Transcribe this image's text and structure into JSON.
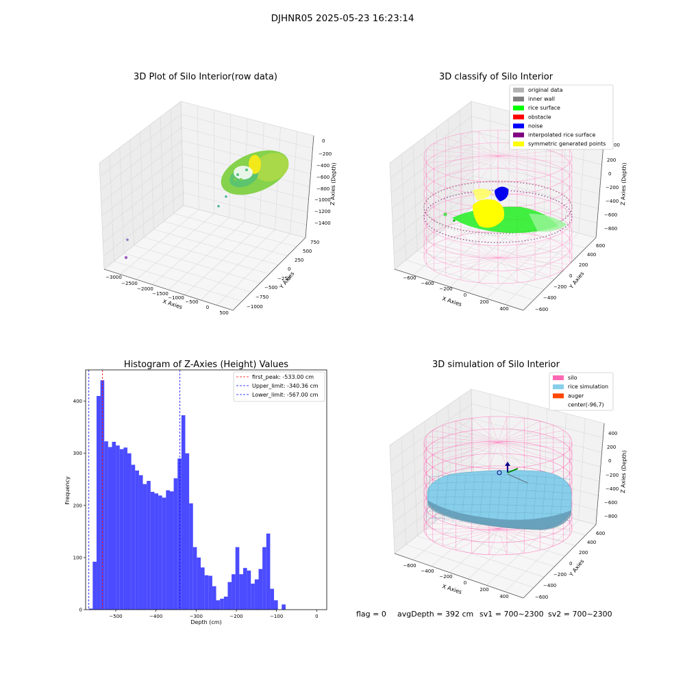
{
  "figure": {
    "suptitle": "DJHNR05 2025-05-23 16:23:14",
    "footer": {
      "flag": "flag = 0",
      "avg_depth": "avgDepth = 392 cm",
      "sv1": "sv1 = 700~2300",
      "sv2": "sv2 = 700~2300"
    }
  },
  "chart_data": [
    {
      "type": "scatter3d",
      "title": "3D Plot of Silo Interior(row data)",
      "xlabel": "X Axies",
      "ylabel": "Y Axies",
      "zlabel": "Z Axies (Depth)",
      "x_ticks": [
        "−3000",
        "−2500",
        "−2000",
        "−1500",
        "−1000",
        "−500",
        "0",
        "500"
      ],
      "y_ticks": [
        "−1000",
        "−750",
        "−500",
        "−250",
        "0",
        "250",
        "500",
        "750"
      ],
      "z_ticks": [
        "0",
        "−200",
        "−400",
        "−600",
        "−800",
        "−1000",
        "−1200",
        "−1400"
      ],
      "colormap": [
        "#9b5fc0",
        "#4bb39a",
        "#7ed04b",
        "#f2e91a"
      ]
    },
    {
      "type": "scatter3d",
      "title": "3D classify of Silo Interior",
      "xlabel": "X Axies",
      "ylabel": "Y Axies",
      "zlabel": "Z Axies (Depth)",
      "x_ticks": [
        "−600",
        "−400",
        "−200",
        "0",
        "200",
        "400"
      ],
      "y_ticks": [
        "−600",
        "−400",
        "−200",
        "0",
        "200",
        "400",
        "600"
      ],
      "z_ticks": [
        "200",
        "0",
        "−200",
        "−400",
        "−600",
        "−800"
      ],
      "z_top_partial": "00",
      "legend_position": "top-right",
      "legend": [
        {
          "label": "original data",
          "color": "#b3b3b3"
        },
        {
          "label": "inner wall",
          "color": "#808080"
        },
        {
          "label": "rice surface",
          "color": "#00ff00"
        },
        {
          "label": "obstacle",
          "color": "#ff0000"
        },
        {
          "label": "noise",
          "color": "#0000ff"
        },
        {
          "label": "interpolated rice surface",
          "color": "#800080"
        },
        {
          "label": "symmetric generated points",
          "color": "#ffff00"
        }
      ]
    },
    {
      "type": "bar",
      "title": "Histogram of Z-Axies (Height) Values",
      "xlabel": "Depth (cm)",
      "ylabel": "Frequency",
      "xlim": [
        -575,
        25
      ],
      "ylim": [
        0,
        460
      ],
      "x_ticks": [
        {
          "v": -500,
          "label": "−500"
        },
        {
          "v": -400,
          "label": "−400"
        },
        {
          "v": -300,
          "label": "−300"
        },
        {
          "v": -200,
          "label": "−200"
        },
        {
          "v": -100,
          "label": "−100"
        },
        {
          "v": 0,
          "label": "0"
        }
      ],
      "y_ticks": [
        {
          "v": 0,
          "label": "0"
        },
        {
          "v": 100,
          "label": "100"
        },
        {
          "v": 200,
          "label": "200"
        },
        {
          "v": 300,
          "label": "300"
        },
        {
          "v": 400,
          "label": "400"
        }
      ],
      "bin_start": -567,
      "bin_width": 9.6,
      "values": [
        2,
        92,
        410,
        440,
        323,
        312,
        322,
        315,
        308,
        311,
        300,
        278,
        267,
        258,
        241,
        247,
        226,
        223,
        219,
        215,
        229,
        227,
        252,
        290,
        373,
        300,
        204,
        120,
        100,
        81,
        66,
        65,
        45,
        18,
        21,
        25,
        53,
        68,
        120,
        68,
        80,
        75,
        50,
        58,
        78,
        120,
        146,
        40,
        18,
        0,
        10
      ],
      "color": "#4b4bff",
      "legend_position": "top-right",
      "vlines": [
        {
          "x": -533.0,
          "label": "first_peak: -533.00 cm",
          "color": "#ff0000"
        },
        {
          "x": -340.36,
          "label": "Upper_limit: -340.36 cm",
          "color": "#0000ff"
        },
        {
          "x": -567.0,
          "label": "Lower_limit: -567.00 cm",
          "color": "#0000ff"
        }
      ]
    },
    {
      "type": "surface3d",
      "title": "3D simulation of Silo Interior",
      "xlabel": "X Axies",
      "ylabel": "Y Axies",
      "zlabel": "Z Axies (Depth)",
      "x_ticks": [
        "−600",
        "−400",
        "−200",
        "0",
        "200",
        "400"
      ],
      "y_ticks": [
        "−600",
        "−400",
        "−200",
        "0",
        "200",
        "400",
        "600"
      ],
      "z_ticks": [
        "400",
        "200",
        "0",
        "−200",
        "−400",
        "−600",
        "−800"
      ],
      "legend_position": "top-right",
      "legend": [
        {
          "label": "silo",
          "color": "#ff69b4"
        },
        {
          "label": "rice simulation",
          "color": "#87ceeb"
        },
        {
          "label": "auger",
          "color": "#ff4500"
        },
        {
          "label": "center(-96,7)",
          "color": "none"
        }
      ]
    }
  ]
}
